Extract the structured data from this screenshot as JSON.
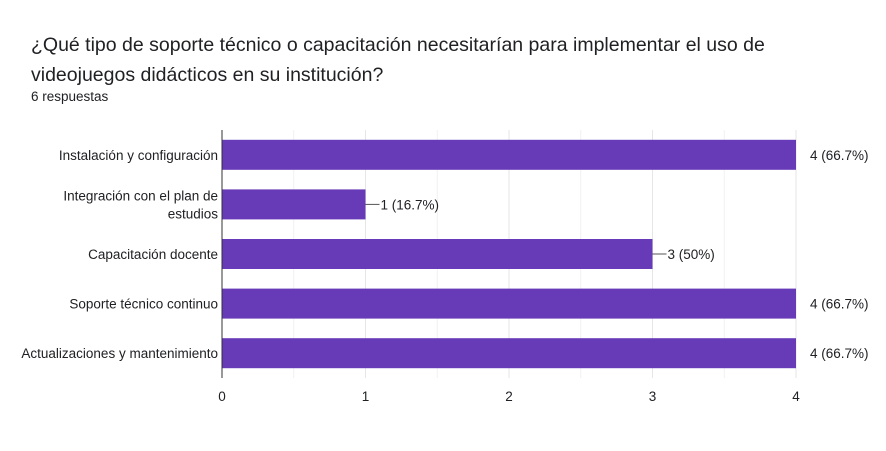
{
  "question": {
    "title": "¿Qué tipo de soporte técnico o capacitación necesitarían para implementar el uso de videojuegos didácticos en su institución?",
    "response_count": "6 respuestas"
  },
  "colors": {
    "bar": "#673ab7",
    "grid": "#e8e8e8",
    "axis": "#333333",
    "text": "#202124"
  },
  "chart_data": {
    "type": "bar",
    "orientation": "horizontal",
    "categories": [
      [
        "Instalación y configuración"
      ],
      [
        "Integración con el plan de",
        "estudios"
      ],
      [
        "Capacitación docente"
      ],
      [
        "Soporte técnico continuo"
      ],
      [
        "Actualizaciones y mantenimiento"
      ]
    ],
    "values": [
      4,
      1,
      3,
      4,
      4
    ],
    "data_labels": [
      "4 (66.7%)",
      "1 (16.7%)",
      "3 (50%)",
      "4 (66.7%)",
      "4 (66.7%)"
    ],
    "xlim": [
      0,
      4
    ],
    "xticks": [
      "0",
      "1",
      "2",
      "3",
      "4"
    ],
    "grid": true,
    "legend": "none"
  }
}
